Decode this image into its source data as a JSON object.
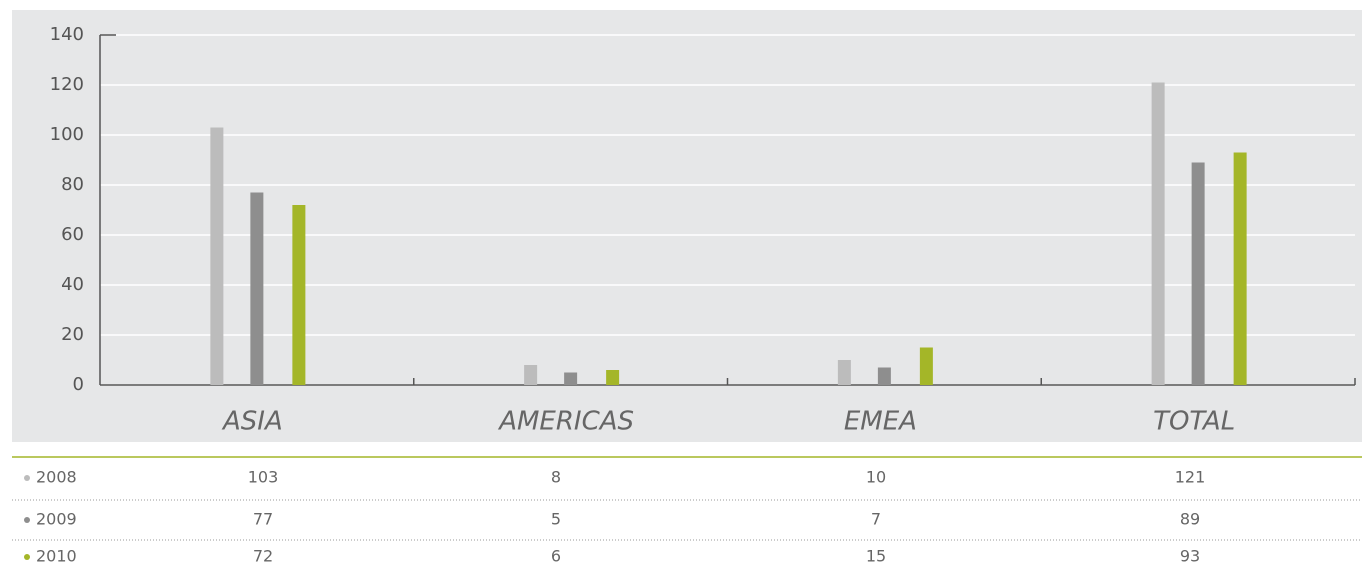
{
  "chart_data": {
    "type": "bar",
    "categories": [
      "ASIA",
      "AMERICAS",
      "EMEA",
      "TOTAL"
    ],
    "series": [
      {
        "name": "2008",
        "color": "#bcbcbc",
        "values": [
          103,
          8,
          10,
          121
        ]
      },
      {
        "name": "2009",
        "color": "#8e8e8e",
        "values": [
          77,
          5,
          7,
          89
        ]
      },
      {
        "name": "2010",
        "color": "#a4b628",
        "values": [
          72,
          6,
          15,
          93
        ]
      }
    ],
    "ylim": [
      0,
      140
    ],
    "yticks": [
      0,
      20,
      40,
      60,
      80,
      100,
      120,
      140
    ],
    "grid": true
  }
}
